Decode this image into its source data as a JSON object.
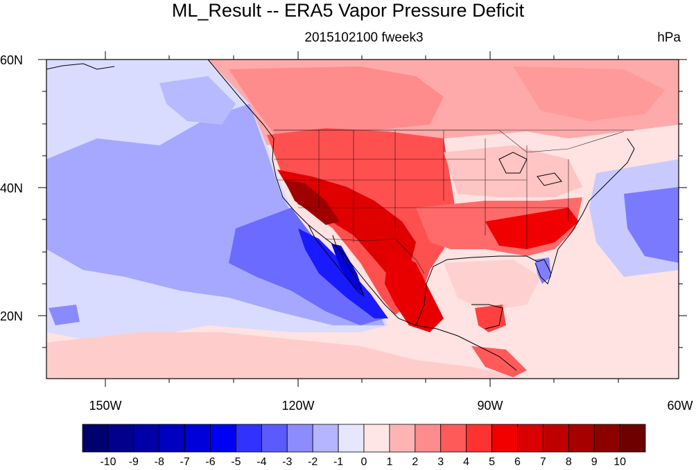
{
  "title": "ML_Result -- ERA5 Vapor Pressure Deficit",
  "center_subtitle": "2015102100 fweek3",
  "right_subtitle": "hPa",
  "map": {
    "lon_range": [
      -160,
      -60
    ],
    "lat_range": [
      10,
      60
    ],
    "lat_ticks": [
      "60N",
      "40N",
      "20N"
    ],
    "lon_ticks": [
      "150W",
      "120W",
      "90W",
      "60W"
    ],
    "features": [
      "coastlines",
      "US state boundaries",
      "national borders"
    ]
  },
  "colorbar": {
    "labels": [
      "-10",
      "-9",
      "-8",
      "-7",
      "-6",
      "-5",
      "-4",
      "-3",
      "-2",
      "-1",
      "0",
      "1",
      "2",
      "3",
      "4",
      "5",
      "6",
      "7",
      "8",
      "9",
      "10"
    ],
    "colors": [
      "#00006e",
      "#00008c",
      "#0000a6",
      "#0000c0",
      "#0000d8",
      "#0000f2",
      "#3232ff",
      "#5a5aff",
      "#8c8cff",
      "#b4b4ff",
      "#e6e6ff",
      "#ffe6e6",
      "#ffb4b4",
      "#ff8c8c",
      "#ff5a5a",
      "#ff3232",
      "#f20000",
      "#d80000",
      "#c00000",
      "#a60000",
      "#8c0000",
      "#6e0000"
    ]
  }
}
